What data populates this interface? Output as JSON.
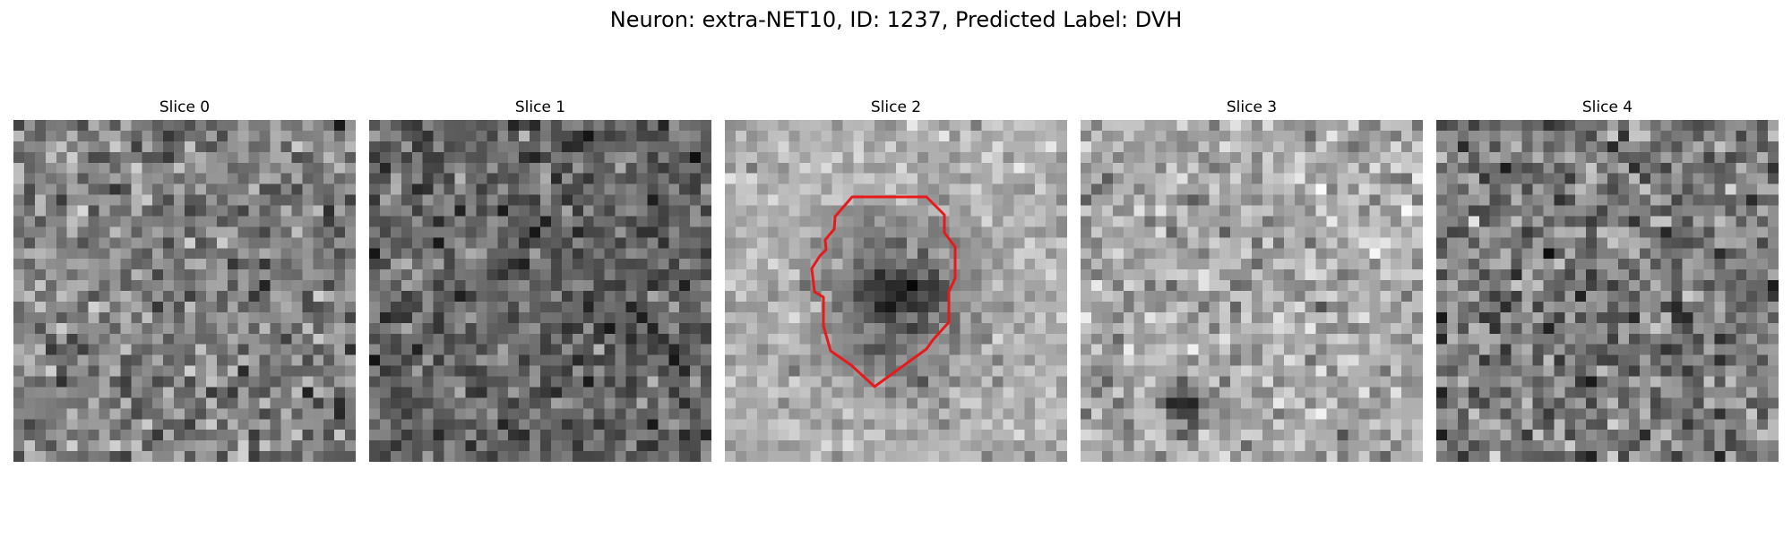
{
  "figure": {
    "title": "Neuron: extra-NET10, ID: 1237, Predicted Label: DVH",
    "contour_color": "#e8191b"
  },
  "slices": [
    {
      "label": "Slice 0",
      "image": "noisy grayscale patch",
      "tone": "mid-gray"
    },
    {
      "label": "Slice 1",
      "image": "noisy grayscale patch",
      "tone": "dark-gray"
    },
    {
      "label": "Slice 2",
      "image": "grayscale patch with dark cell body outlined by red contour",
      "tone": "light-gray",
      "has_contour": true
    },
    {
      "label": "Slice 3",
      "image": "noisy grayscale patch",
      "tone": "light-gray"
    },
    {
      "label": "Slice 4",
      "image": "noisy grayscale patch",
      "tone": "mid-gray"
    }
  ]
}
